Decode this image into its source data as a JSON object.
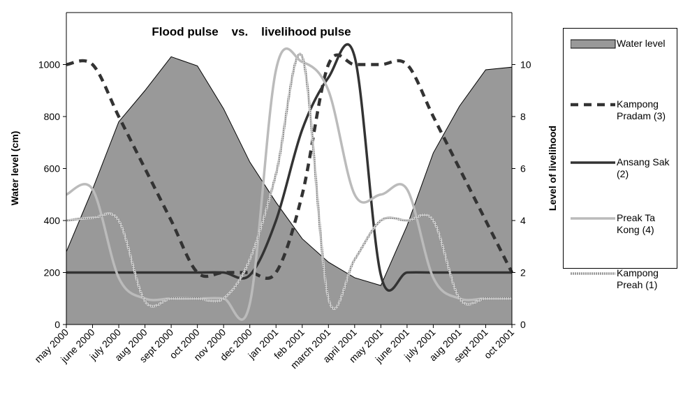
{
  "chart_data": {
    "type": "line",
    "title": "Flood pulse    vs.    livelihood pulse",
    "y_label": "Water level (cm)",
    "y2_label": "Level of livelihood",
    "categories": [
      "may 2000",
      "june 2000",
      "july 2000",
      "aug 2000",
      "sept 2000",
      "oct 2000",
      "nov 2000",
      "dec 2000",
      "jan 2001",
      "feb 2001",
      "march 2001",
      "april 2001",
      "may 2001",
      "june 2001",
      "july 2001",
      "aug 2001",
      "sept 2001",
      "oct 2001"
    ],
    "ylim": [
      0,
      1200
    ],
    "yticks": [
      0,
      200,
      400,
      600,
      800,
      1000
    ],
    "y2lim": [
      0,
      12
    ],
    "y2ticks": [
      0,
      2,
      4,
      6,
      8,
      10
    ],
    "series": [
      {
        "name": "Water level",
        "kind": "area",
        "color": "#999999",
        "values": [
          280,
          520,
          780,
          900,
          1030,
          995,
          830,
          625,
          470,
          330,
          240,
          180,
          150,
          380,
          660,
          840,
          980,
          990
        ]
      },
      {
        "name": "Kampong Pradam (3)",
        "axis": "y2",
        "color": "#333333",
        "dash": true,
        "values": [
          10,
          10,
          8,
          6,
          4,
          2,
          2,
          2,
          2,
          5,
          10,
          10,
          10,
          10,
          8,
          6,
          4,
          2
        ]
      },
      {
        "name": "Ansang Sak (2)",
        "axis": "y2",
        "color": "#333333",
        "values": [
          2,
          2,
          2,
          2,
          2,
          2,
          2,
          1.9,
          4,
          7.5,
          9.5,
          10.3,
          1.9,
          2,
          2,
          2,
          2,
          2
        ]
      },
      {
        "name": "Preak Ta Kong (4)",
        "axis": "y2",
        "color": "#bbbbbb",
        "values": [
          5,
          5.2,
          1.8,
          1,
          1,
          1,
          1,
          0.8,
          9.8,
          10.1,
          9,
          5,
          5,
          5.2,
          1.8,
          1,
          1,
          1
        ]
      },
      {
        "name": "Kampong Preah (1)",
        "axis": "y2",
        "color": "#a0a0a0",
        "dotted": true,
        "values": [
          4,
          4.1,
          4,
          0.9,
          1,
          1,
          1,
          2.5,
          5.8,
          10.3,
          1,
          2.5,
          4,
          4,
          4,
          1,
          1,
          1
        ]
      }
    ]
  }
}
